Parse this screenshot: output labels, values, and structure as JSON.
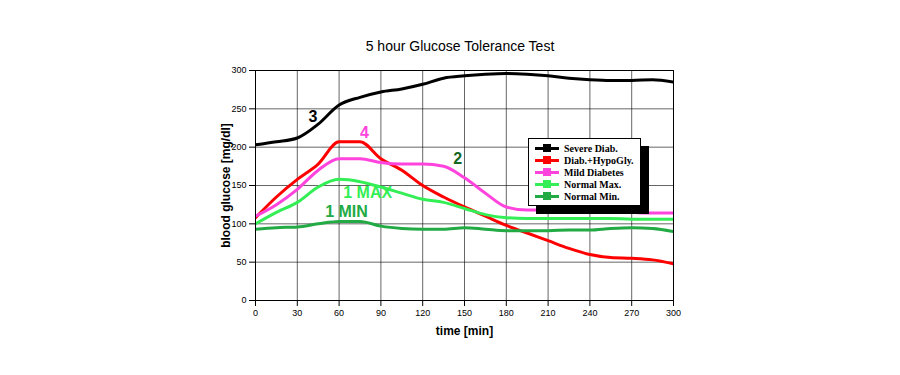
{
  "chart_data": {
    "type": "line",
    "title": "5 hour Glucose Tolerance Test",
    "x_label": "time [min]",
    "y_label": "blood glucose [mg/dl]",
    "x": [
      0,
      15,
      30,
      45,
      60,
      75,
      90,
      105,
      120,
      135,
      150,
      165,
      180,
      195,
      210,
      225,
      240,
      255,
      270,
      285,
      300
    ],
    "series": [
      {
        "name": "Severe Diab.",
        "color": "#000000",
        "values": [
          203,
          207,
          212,
          230,
          255,
          265,
          272,
          276,
          282,
          290,
          293,
          295,
          296,
          295,
          293,
          290,
          288,
          287,
          287,
          288,
          285
        ]
      },
      {
        "name": "Diab.+HypoGly.",
        "color": "#ff0000",
        "values": [
          108,
          135,
          158,
          178,
          207,
          207,
          185,
          170,
          150,
          135,
          122,
          110,
          98,
          88,
          78,
          68,
          60,
          56,
          55,
          53,
          48
        ]
      },
      {
        "name": "Mild Diabetes",
        "color": "#ff44dd",
        "values": [
          110,
          125,
          145,
          170,
          185,
          185,
          180,
          178,
          178,
          175,
          160,
          140,
          122,
          118,
          118,
          118,
          118,
          116,
          115,
          114,
          114
        ]
      },
      {
        "name": "Normal Max.",
        "color": "#33ee55",
        "values": [
          100,
          115,
          128,
          148,
          158,
          155,
          148,
          140,
          132,
          128,
          120,
          112,
          108,
          107,
          107,
          107,
          107,
          107,
          106,
          106,
          106
        ]
      },
      {
        "name": "Normal Min.",
        "color": "#22aa44",
        "values": [
          93,
          95,
          96,
          100,
          103,
          103,
          97,
          94,
          93,
          93,
          95,
          93,
          91,
          91,
          91,
          92,
          92,
          94,
          95,
          94,
          90
        ]
      }
    ],
    "annotations": [
      {
        "text": "3",
        "x": 38,
        "y": 240,
        "color": "#000000"
      },
      {
        "text": "4",
        "x": 75,
        "y": 218,
        "color": "#ff44dd"
      },
      {
        "text": "2",
        "x": 142,
        "y": 185,
        "color": "#116622"
      },
      {
        "text": "1 MAX",
        "x": 63,
        "y": 140,
        "color": "#33ee55"
      },
      {
        "text": "1 MIN",
        "x": 50,
        "y": 115,
        "color": "#22aa44"
      }
    ],
    "xlim": [
      0,
      300
    ],
    "xticks": [
      0,
      30,
      60,
      90,
      120,
      150,
      180,
      210,
      240,
      270,
      300
    ],
    "ylim": [
      0,
      300
    ],
    "yticks": [
      0,
      50,
      100,
      150,
      200,
      250,
      300
    ],
    "grid": true,
    "legend": "upper right"
  }
}
